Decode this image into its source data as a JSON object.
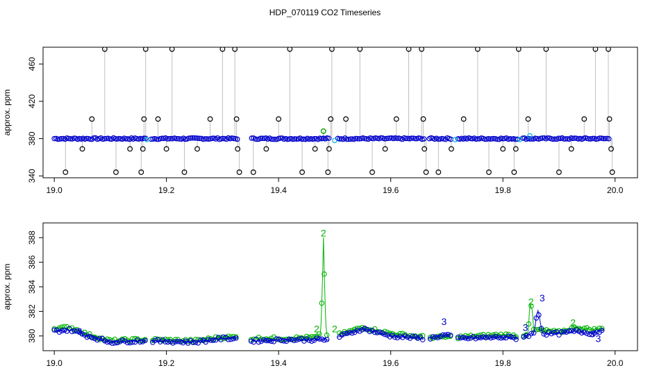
{
  "title": "HDP_070119  CO2 Timeseries",
  "colors": {
    "black": "#000000",
    "blue": "#0000cc",
    "green": "#00b400",
    "cyan": "#00b4d8",
    "gray": "#808080"
  },
  "chart_data": [
    {
      "type": "scatter",
      "title": "HDP_070119  CO2 Timeseries",
      "xlabel": "",
      "ylabel": "approx. ppm",
      "xlim": [
        18.98,
        20.04
      ],
      "ylim": [
        338,
        478
      ],
      "x_ticks": [
        "19.0",
        "19.2",
        "19.4",
        "19.6",
        "19.8",
        "20.0"
      ],
      "y_ticks": [
        "340",
        "380",
        "420",
        "460"
      ],
      "baseline": 380,
      "gaps": [
        [
          19.165,
          19.172
        ],
        [
          19.328,
          19.35
        ],
        [
          19.49,
          19.505
        ],
        [
          19.66,
          19.668
        ],
        [
          19.708,
          19.718
        ],
        [
          19.828,
          19.835
        ]
      ],
      "series": [
        {
          "name": "",
          "marker": "open-circle",
          "color": "black",
          "points": [
            [
              19.02,
              344
            ],
            [
              19.05,
              369
            ],
            [
              19.067,
              401
            ],
            [
              19.09,
              476
            ],
            [
              19.11,
              344
            ],
            [
              19.135,
              369
            ],
            [
              19.155,
              344
            ],
            [
              19.158,
              369
            ],
            [
              19.16,
              401
            ],
            [
              19.163,
              476
            ],
            [
              19.185,
              401
            ],
            [
              19.2,
              369
            ],
            [
              19.21,
              476
            ],
            [
              19.232,
              344
            ],
            [
              19.255,
              369
            ],
            [
              19.278,
              401
            ],
            [
              19.3,
              476
            ],
            [
              19.322,
              476
            ],
            [
              19.325,
              401
            ],
            [
              19.327,
              369
            ],
            [
              19.33,
              344
            ],
            [
              19.355,
              344
            ],
            [
              19.378,
              369
            ],
            [
              19.4,
              401
            ],
            [
              19.42,
              476
            ],
            [
              19.442,
              344
            ],
            [
              19.465,
              369
            ],
            [
              19.48,
              388
            ],
            [
              19.488,
              344
            ],
            [
              19.49,
              369
            ],
            [
              19.493,
              401
            ],
            [
              19.495,
              476
            ],
            [
              19.52,
              401
            ],
            [
              19.545,
              476
            ],
            [
              19.567,
              344
            ],
            [
              19.59,
              369
            ],
            [
              19.61,
              401
            ],
            [
              19.632,
              476
            ],
            [
              19.655,
              476
            ],
            [
              19.658,
              401
            ],
            [
              19.66,
              369
            ],
            [
              19.663,
              344
            ],
            [
              19.685,
              344
            ],
            [
              19.708,
              369
            ],
            [
              19.73,
              401
            ],
            [
              19.755,
              476
            ],
            [
              19.775,
              344
            ],
            [
              19.8,
              369
            ],
            [
              19.82,
              344
            ],
            [
              19.823,
              369
            ],
            [
              19.828,
              476
            ],
            [
              19.845,
              401
            ],
            [
              19.877,
              476
            ],
            [
              19.9,
              344
            ],
            [
              19.922,
              369
            ],
            [
              19.945,
              401
            ],
            [
              19.965,
              476
            ],
            [
              19.988,
              476
            ],
            [
              19.99,
              401
            ],
            [
              19.993,
              369
            ],
            [
              19.995,
              344
            ]
          ]
        }
      ]
    },
    {
      "type": "line",
      "title": "",
      "xlabel": "",
      "ylabel": "approx. ppm",
      "xlim": [
        18.98,
        20.04
      ],
      "ylim": [
        378.8,
        389.2
      ],
      "x_ticks": [
        "19.0",
        "19.2",
        "19.4",
        "19.6",
        "19.8",
        "20.0"
      ],
      "y_ticks": [
        "380",
        "382",
        "384",
        "386",
        "388"
      ],
      "gaps": [
        [
          19.165,
          19.172
        ],
        [
          19.328,
          19.35
        ],
        [
          19.49,
          19.505
        ],
        [
          19.66,
          19.668
        ],
        [
          19.708,
          19.718
        ],
        [
          19.828,
          19.835
        ]
      ],
      "series": [
        {
          "name": "",
          "label_glyph": "2",
          "color": "green",
          "profile": [
            [
              19.0,
              380.6
            ],
            [
              19.03,
              380.7
            ],
            [
              19.06,
              380.1
            ],
            [
              19.1,
              379.6
            ],
            [
              19.15,
              379.7
            ],
            [
              19.17,
              379.7
            ],
            [
              19.25,
              379.6
            ],
            [
              19.3,
              379.9
            ],
            [
              19.33,
              379.9
            ],
            [
              19.35,
              379.8
            ],
            [
              19.42,
              379.8
            ],
            [
              19.47,
              379.9
            ],
            [
              19.475,
              380.2
            ],
            [
              19.478,
              384.0
            ],
            [
              19.48,
              388.0
            ],
            [
              19.482,
              384.0
            ],
            [
              19.485,
              380.2
            ],
            [
              19.49,
              379.9
            ],
            [
              19.5,
              380.0
            ],
            [
              19.55,
              380.7
            ],
            [
              19.6,
              380.2
            ],
            [
              19.66,
              379.9
            ],
            [
              19.668,
              379.9
            ],
            [
              19.708,
              379.9
            ],
            [
              19.718,
              379.9
            ],
            [
              19.8,
              380.1
            ],
            [
              19.83,
              380.0
            ],
            [
              19.835,
              380.0
            ],
            [
              19.845,
              380.3
            ],
            [
              19.848,
              382.5
            ],
            [
              19.852,
              382.2
            ],
            [
              19.855,
              380.5
            ],
            [
              19.9,
              380.3
            ],
            [
              19.93,
              380.7
            ],
            [
              19.96,
              380.5
            ],
            [
              19.98,
              380.6
            ]
          ],
          "labels": [
            [
              19.48,
              388.1
            ],
            [
              19.468,
              380.3
            ],
            [
              19.5,
              380.3
            ],
            [
              19.85,
              382.5
            ],
            [
              19.925,
              380.8
            ]
          ]
        },
        {
          "name": "",
          "label_glyph": "3",
          "color": "blue",
          "profile": [
            [
              19.0,
              380.4
            ],
            [
              19.03,
              380.5
            ],
            [
              19.06,
              380.0
            ],
            [
              19.1,
              379.5
            ],
            [
              19.15,
              379.6
            ],
            [
              19.17,
              379.6
            ],
            [
              19.25,
              379.5
            ],
            [
              19.3,
              379.8
            ],
            [
              19.33,
              379.8
            ],
            [
              19.35,
              379.6
            ],
            [
              19.42,
              379.7
            ],
            [
              19.47,
              379.7
            ],
            [
              19.49,
              379.7
            ],
            [
              19.5,
              379.8
            ],
            [
              19.55,
              380.6
            ],
            [
              19.6,
              380.0
            ],
            [
              19.66,
              379.8
            ],
            [
              19.668,
              379.8
            ],
            [
              19.7,
              380.1
            ],
            [
              19.708,
              379.9
            ],
            [
              19.718,
              379.8
            ],
            [
              19.8,
              379.9
            ],
            [
              19.83,
              379.8
            ],
            [
              19.835,
              379.9
            ],
            [
              19.855,
              380.2
            ],
            [
              19.862,
              382.2
            ],
            [
              19.866,
              381.4
            ],
            [
              19.87,
              380.2
            ],
            [
              19.9,
              380.2
            ],
            [
              19.93,
              380.4
            ],
            [
              19.96,
              380.2
            ],
            [
              19.98,
              380.5
            ]
          ],
          "labels": [
            [
              19.695,
              380.9
            ],
            [
              19.87,
              382.8
            ],
            [
              19.84,
              380.4
            ],
            [
              19.97,
              379.5
            ],
            [
              19.96,
              379.9
            ],
            [
              19.045,
              380.1
            ]
          ]
        }
      ]
    }
  ]
}
